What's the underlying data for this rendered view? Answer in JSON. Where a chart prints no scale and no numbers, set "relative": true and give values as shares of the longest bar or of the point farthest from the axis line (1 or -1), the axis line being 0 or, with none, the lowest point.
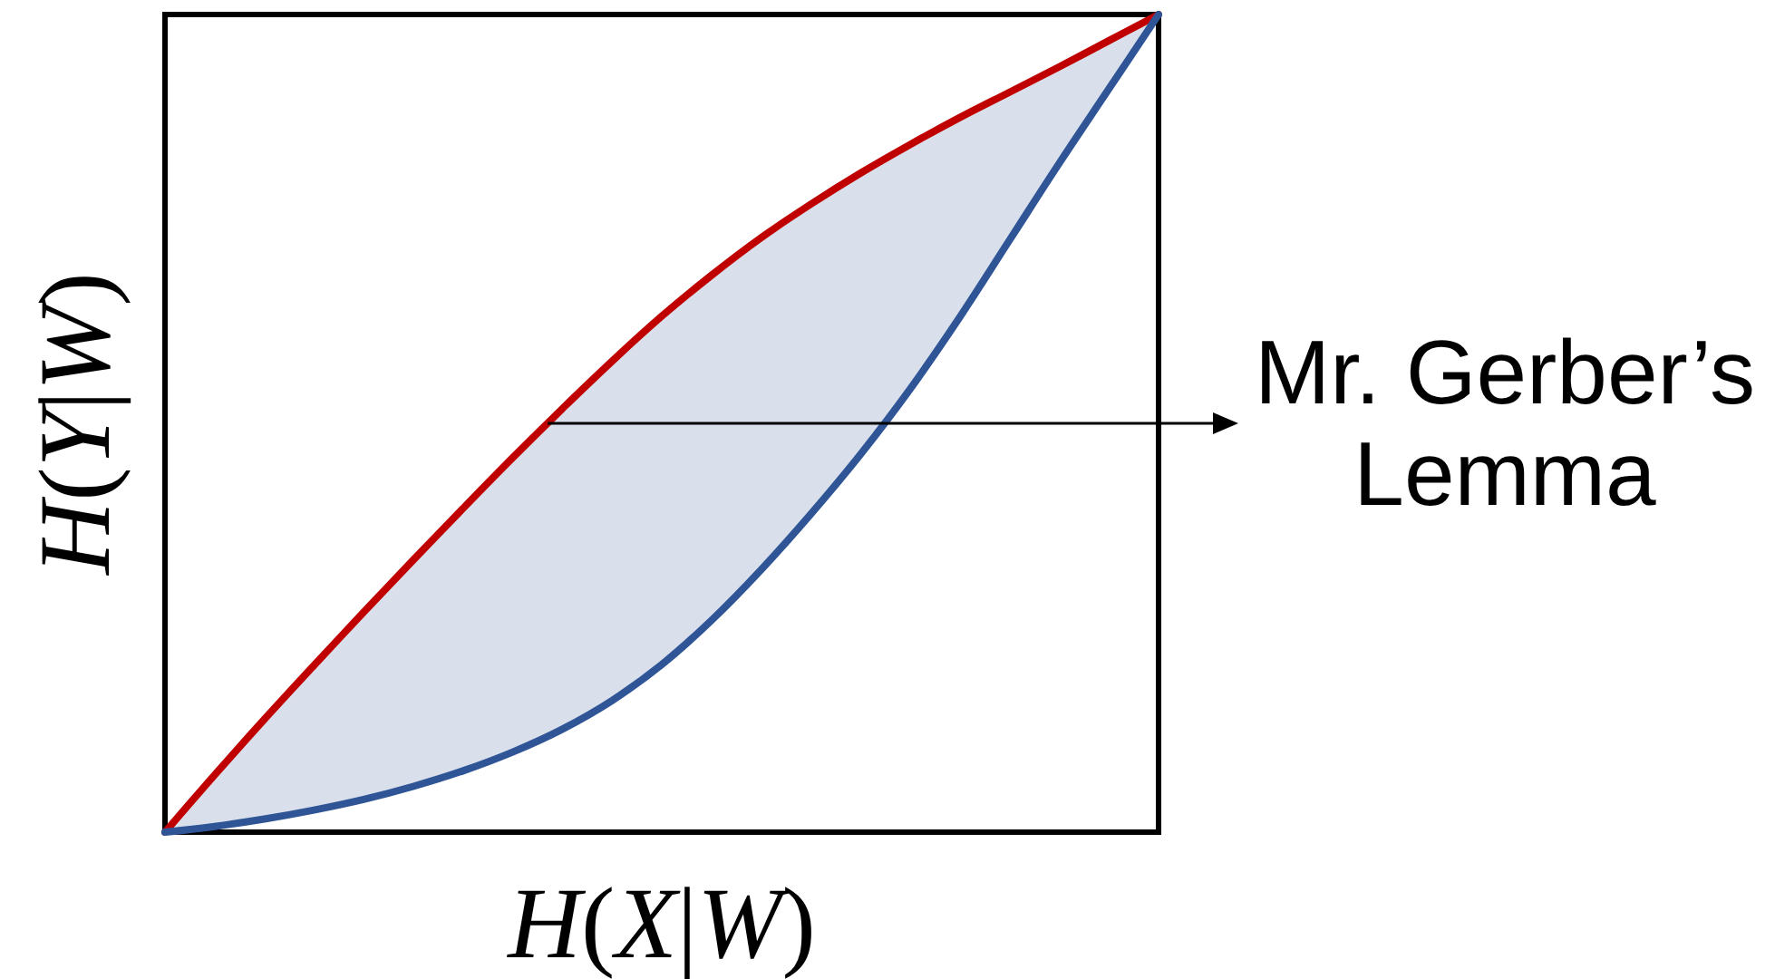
{
  "chart_data": {
    "type": "line",
    "relative": true,
    "categories": [
      null,
      null,
      null,
      null,
      null,
      null,
      null,
      null,
      null,
      null,
      null,
      null,
      null,
      null,
      null,
      null,
      null,
      null,
      null,
      null,
      null
    ],
    "series": [
      {
        "color": "#c00000",
        "values": [
          0,
          0.07,
          0.138,
          0.204,
          0.269,
          0.333,
          0.396,
          0.458,
          0.518,
          0.576,
          0.631,
          0.681,
          0.727,
          0.768,
          0.806,
          0.841,
          0.874,
          0.905,
          0.936,
          0.968,
          1
        ]
      },
      {
        "color": "#2f5597",
        "values": [
          0,
          0.007,
          0.016,
          0.027,
          0.04,
          0.056,
          0.075,
          0.098,
          0.126,
          0.161,
          0.205,
          0.259,
          0.321,
          0.389,
          0.462,
          0.542,
          0.63,
          0.724,
          0.818,
          0.909,
          1
        ],
        "lower": [
          0,
          0.007,
          0.016,
          0.027,
          0.04,
          0.056,
          0.075,
          0.098,
          0.126,
          0.161,
          0.205,
          0.259,
          0.321,
          0.389,
          0.462,
          0.542,
          0.63,
          0.724,
          0.818,
          0.909,
          1
        ],
        "upper": [
          0,
          0.07,
          0.138,
          0.204,
          0.269,
          0.333,
          0.396,
          0.458,
          0.518,
          0.576,
          0.631,
          0.681,
          0.727,
          0.768,
          0.806,
          0.841,
          0.874,
          0.905,
          0.936,
          0.968,
          1
        ]
      }
    ],
    "xlabel": "H(X|W)",
    "ylabel": "H(Y|W)",
    "annotations": [
      "Mr. Gerber’s Lemma"
    ],
    "marker": "none",
    "line_style": "solid"
  }
}
